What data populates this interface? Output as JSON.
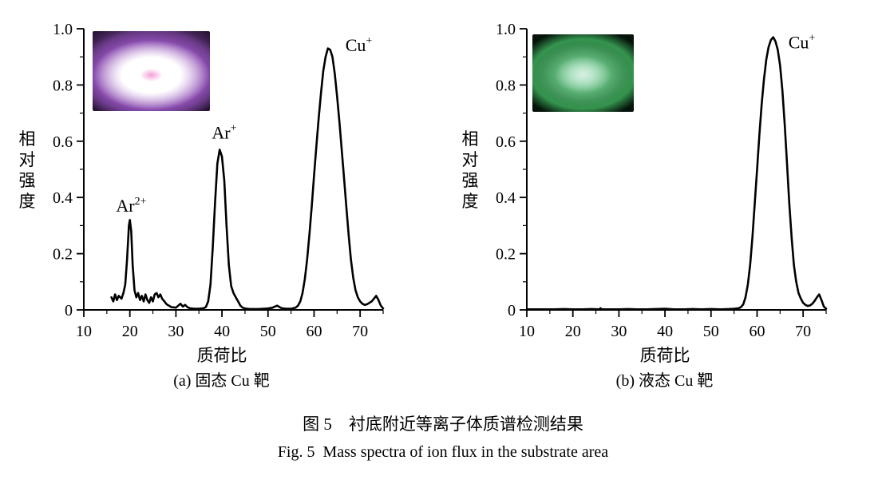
{
  "figure": {
    "caption_cn": "图 5　衬底附近等离子体质谱检测结果",
    "caption_en": "Fig. 5  Mass spectra of ion flux in the substrate area"
  },
  "panels": [
    {
      "id": "a",
      "subcaption": "(a) 固态 Cu 靶",
      "inset": {
        "name": "plasma-photo-solid-target",
        "description_colors": "violet plasma discharge photo",
        "colors": [
          "#150a1e",
          "#8b4db0",
          "#e9c6f7",
          "#ffffff",
          "#f59fd7"
        ]
      }
    },
    {
      "id": "b",
      "subcaption": "(b) 液态 Cu 靶",
      "inset": {
        "name": "plasma-photo-liquid-target",
        "description_colors": "green plasma discharge photo",
        "colors": [
          "#05130a",
          "#35954f",
          "#7fd49b",
          "#d8efe4"
        ]
      }
    }
  ],
  "chart_data": [
    {
      "type": "line",
      "title": "(a) 固态 Cu 靶",
      "xlabel": "质荷比",
      "ylabel": "相对强度",
      "xlim": [
        10,
        75
      ],
      "ylim": [
        0,
        1.0
      ],
      "xticks": [
        10,
        20,
        30,
        40,
        50,
        60,
        70
      ],
      "xtick_labels": [
        "10",
        "20",
        "30",
        "40",
        "50",
        "60",
        "70"
      ],
      "xticks_minor": [
        15,
        25,
        35,
        45,
        55,
        65,
        75
      ],
      "yticks": [
        0,
        0.2,
        0.4,
        0.6,
        0.8,
        1.0
      ],
      "ytick_labels": [
        "0",
        "0.2",
        "0.4",
        "0.6",
        "0.8",
        "1.0"
      ],
      "yticks_minor": [
        0.1,
        0.3,
        0.5,
        0.7,
        0.9
      ],
      "line_color": "#000000",
      "grid": false,
      "annotations": [
        {
          "base": "Ar",
          "sup": "2+",
          "x": 20.3,
          "y": 0.35,
          "anchor": "middle"
        },
        {
          "base": "Ar",
          "sup": "+",
          "x": 40.5,
          "y": 0.61,
          "anchor": "middle"
        },
        {
          "base": "Cu",
          "sup": "+",
          "x": 66.8,
          "y": 0.92,
          "anchor": "start"
        }
      ],
      "series": [
        {
          "name": "ion flux (solid Cu target)",
          "points": [
            [
              16,
              0.045
            ],
            [
              16.4,
              0.03
            ],
            [
              16.8,
              0.055
            ],
            [
              17.2,
              0.035
            ],
            [
              17.6,
              0.05
            ],
            [
              18.2,
              0.04
            ],
            [
              18.6,
              0.06
            ],
            [
              19.0,
              0.09
            ],
            [
              19.4,
              0.18
            ],
            [
              19.8,
              0.3
            ],
            [
              20.0,
              0.32
            ],
            [
              20.3,
              0.28
            ],
            [
              20.6,
              0.16
            ],
            [
              21.0,
              0.07
            ],
            [
              21.4,
              0.045
            ],
            [
              21.8,
              0.06
            ],
            [
              22.2,
              0.035
            ],
            [
              22.6,
              0.05
            ],
            [
              23.0,
              0.03
            ],
            [
              23.4,
              0.055
            ],
            [
              23.8,
              0.035
            ],
            [
              24.2,
              0.025
            ],
            [
              24.6,
              0.045
            ],
            [
              25.0,
              0.03
            ],
            [
              25.4,
              0.055
            ],
            [
              25.8,
              0.06
            ],
            [
              26.2,
              0.045
            ],
            [
              26.6,
              0.055
            ],
            [
              27.0,
              0.04
            ],
            [
              27.5,
              0.03
            ],
            [
              28.0,
              0.02
            ],
            [
              28.5,
              0.015
            ],
            [
              29.0,
              0.01
            ],
            [
              30.0,
              0.008
            ],
            [
              30.5,
              0.015
            ],
            [
              31.0,
              0.022
            ],
            [
              31.5,
              0.012
            ],
            [
              32.0,
              0.018
            ],
            [
              32.5,
              0.01
            ],
            [
              33.0,
              0.006
            ],
            [
              34.0,
              0.004
            ],
            [
              35.0,
              0.004
            ],
            [
              36.0,
              0.006
            ],
            [
              36.5,
              0.01
            ],
            [
              37.0,
              0.03
            ],
            [
              37.5,
              0.09
            ],
            [
              38.0,
              0.22
            ],
            [
              38.5,
              0.38
            ],
            [
              39.0,
              0.52
            ],
            [
              39.5,
              0.57
            ],
            [
              40.0,
              0.545
            ],
            [
              40.5,
              0.46
            ],
            [
              41.0,
              0.3
            ],
            [
              41.5,
              0.16
            ],
            [
              42.0,
              0.085
            ],
            [
              42.5,
              0.06
            ],
            [
              43.0,
              0.045
            ],
            [
              43.5,
              0.03
            ],
            [
              44.0,
              0.015
            ],
            [
              44.5,
              0.008
            ],
            [
              45.0,
              0.005
            ],
            [
              46,
              0.003
            ],
            [
              47,
              0.003
            ],
            [
              48,
              0.003
            ],
            [
              49,
              0.004
            ],
            [
              50,
              0.005
            ],
            [
              51,
              0.008
            ],
            [
              51.5,
              0.012
            ],
            [
              52,
              0.015
            ],
            [
              52.5,
              0.01
            ],
            [
              53,
              0.006
            ],
            [
              54,
              0.004
            ],
            [
              55,
              0.004
            ],
            [
              56,
              0.008
            ],
            [
              56.5,
              0.015
            ],
            [
              57,
              0.03
            ],
            [
              57.5,
              0.06
            ],
            [
              58,
              0.11
            ],
            [
              58.5,
              0.18
            ],
            [
              59,
              0.27
            ],
            [
              59.5,
              0.37
            ],
            [
              60,
              0.48
            ],
            [
              60.5,
              0.58
            ],
            [
              61,
              0.68
            ],
            [
              61.5,
              0.77
            ],
            [
              62,
              0.85
            ],
            [
              62.5,
              0.9
            ],
            [
              63,
              0.93
            ],
            [
              63.5,
              0.925
            ],
            [
              64,
              0.9
            ],
            [
              64.5,
              0.84
            ],
            [
              65,
              0.76
            ],
            [
              65.5,
              0.67
            ],
            [
              66,
              0.57
            ],
            [
              66.5,
              0.47
            ],
            [
              67,
              0.37
            ],
            [
              67.5,
              0.27
            ],
            [
              68,
              0.18
            ],
            [
              68.5,
              0.115
            ],
            [
              69,
              0.07
            ],
            [
              69.5,
              0.045
            ],
            [
              70,
              0.03
            ],
            [
              70.5,
              0.022
            ],
            [
              71,
              0.018
            ],
            [
              71.5,
              0.02
            ],
            [
              72,
              0.025
            ],
            [
              72.5,
              0.03
            ],
            [
              73,
              0.04
            ],
            [
              73.5,
              0.05
            ],
            [
              74,
              0.035
            ],
            [
              74.5,
              0.015
            ],
            [
              75,
              0.005
            ]
          ]
        }
      ]
    },
    {
      "type": "line",
      "title": "(b) 液态 Cu 靶",
      "xlabel": "质荷比",
      "ylabel": "相对强度",
      "xlim": [
        10,
        75
      ],
      "ylim": [
        0,
        1.0
      ],
      "xticks": [
        10,
        20,
        30,
        40,
        50,
        60,
        70
      ],
      "xtick_labels": [
        "10",
        "20",
        "30",
        "40",
        "50",
        "60",
        "70"
      ],
      "xticks_minor": [
        15,
        25,
        35,
        45,
        55,
        65,
        75
      ],
      "yticks": [
        0,
        0.2,
        0.4,
        0.6,
        0.8,
        1.0
      ],
      "ytick_labels": [
        "0",
        "0.2",
        "0.4",
        "0.6",
        "0.8",
        "1.0"
      ],
      "yticks_minor": [
        0.1,
        0.3,
        0.5,
        0.7,
        0.9
      ],
      "line_color": "#000000",
      "grid": false,
      "annotations": [
        {
          "base": "Cu",
          "sup": "+",
          "x": 66.8,
          "y": 0.93,
          "anchor": "start"
        }
      ],
      "series": [
        {
          "name": "ion flux (liquid Cu target)",
          "points": [
            [
              10,
              0.002
            ],
            [
              12,
              0.002
            ],
            [
              14,
              0.002
            ],
            [
              16,
              0.002
            ],
            [
              18,
              0.003
            ],
            [
              20,
              0.002
            ],
            [
              22,
              0.002
            ],
            [
              24,
              0.003
            ],
            [
              25.8,
              0.002
            ],
            [
              26,
              0.006
            ],
            [
              26.3,
              0.002
            ],
            [
              28,
              0.002
            ],
            [
              30,
              0.002
            ],
            [
              32,
              0.003
            ],
            [
              34,
              0.002
            ],
            [
              36,
              0.002
            ],
            [
              38,
              0.003
            ],
            [
              40,
              0.004
            ],
            [
              42,
              0.002
            ],
            [
              44,
              0.002
            ],
            [
              46,
              0.003
            ],
            [
              48,
              0.002
            ],
            [
              50,
              0.003
            ],
            [
              52,
              0.002
            ],
            [
              54,
              0.003
            ],
            [
              55,
              0.004
            ],
            [
              56,
              0.006
            ],
            [
              56.5,
              0.01
            ],
            [
              57,
              0.02
            ],
            [
              57.5,
              0.045
            ],
            [
              58,
              0.09
            ],
            [
              58.5,
              0.16
            ],
            [
              59,
              0.26
            ],
            [
              59.5,
              0.38
            ],
            [
              60,
              0.5
            ],
            [
              60.5,
              0.62
            ],
            [
              61,
              0.73
            ],
            [
              61.5,
              0.82
            ],
            [
              62,
              0.89
            ],
            [
              62.5,
              0.935
            ],
            [
              63,
              0.96
            ],
            [
              63.5,
              0.97
            ],
            [
              64,
              0.955
            ],
            [
              64.5,
              0.925
            ],
            [
              65,
              0.87
            ],
            [
              65.5,
              0.78
            ],
            [
              66,
              0.66
            ],
            [
              66.5,
              0.52
            ],
            [
              67,
              0.38
            ],
            [
              67.5,
              0.26
            ],
            [
              68,
              0.16
            ],
            [
              68.5,
              0.1
            ],
            [
              69,
              0.06
            ],
            [
              69.5,
              0.04
            ],
            [
              70,
              0.025
            ],
            [
              70.5,
              0.018
            ],
            [
              71,
              0.014
            ],
            [
              71.5,
              0.016
            ],
            [
              72,
              0.022
            ],
            [
              72.5,
              0.032
            ],
            [
              73,
              0.045
            ],
            [
              73.5,
              0.055
            ],
            [
              74,
              0.035
            ],
            [
              74.5,
              0.012
            ],
            [
              75,
              0.004
            ]
          ]
        }
      ]
    }
  ]
}
